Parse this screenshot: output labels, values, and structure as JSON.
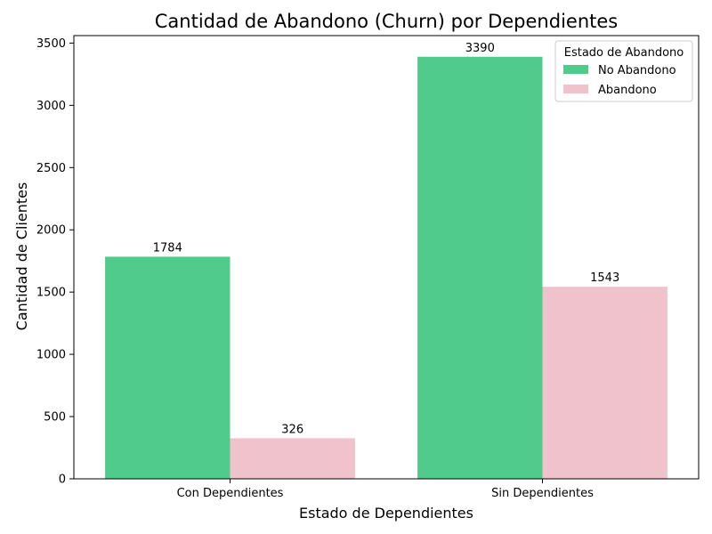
{
  "chart_data": {
    "type": "bar",
    "title": "Cantidad de Abandono (Churn) por Dependientes",
    "xlabel": "Estado de Dependientes",
    "ylabel": "Cantidad de Clientes",
    "categories": [
      "Con Dependientes",
      "Sin Dependientes"
    ],
    "series": [
      {
        "name": "No Abandono",
        "values": [
          1784,
          3390
        ],
        "color": "#50cb8b"
      },
      {
        "name": "Abandono",
        "values": [
          326,
          1543
        ],
        "color": "#f0c2cc"
      }
    ],
    "ylim": [
      0,
      3560
    ],
    "yticks": [
      0,
      500,
      1000,
      1500,
      2000,
      2500,
      3000,
      3500
    ],
    "grid": false,
    "legend": {
      "title": "Estado de Abandono",
      "placement": "top-right"
    }
  }
}
